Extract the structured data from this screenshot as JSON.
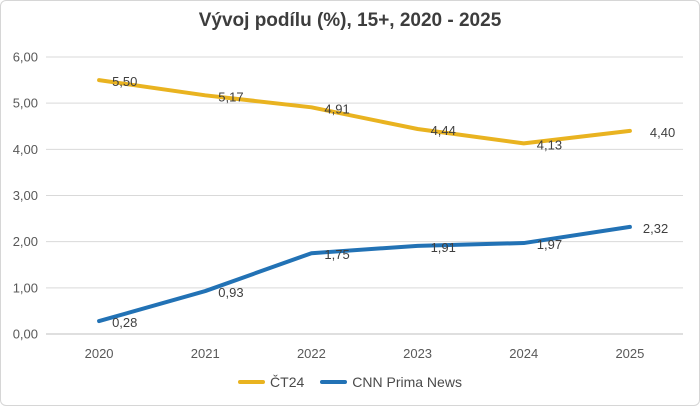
{
  "chart_data": {
    "type": "line",
    "title": "Vývoj podílu (%), 15+, 2020 - 2025",
    "xlabel": "",
    "ylabel": "",
    "categories": [
      "2020",
      "2021",
      "2022",
      "2023",
      "2024",
      "2025"
    ],
    "series": [
      {
        "name": "ČT24",
        "color": "#e9b320",
        "values": [
          5.5,
          5.17,
          4.91,
          4.44,
          4.13,
          4.4
        ],
        "labels": [
          "5,50",
          "5,17",
          "4,91",
          "4,44",
          "4,13",
          "4,40"
        ]
      },
      {
        "name": "CNN Prima News",
        "color": "#2272b5",
        "values": [
          0.28,
          0.93,
          1.75,
          1.91,
          1.97,
          2.32
        ],
        "labels": [
          "0,28",
          "0,93",
          "1,75",
          "1,91",
          "1,97",
          "2,32"
        ]
      }
    ],
    "ylim": [
      0,
      6
    ],
    "ytick_step": 1,
    "ytick_labels": [
      "0,00",
      "1,00",
      "2,00",
      "3,00",
      "4,00",
      "5,00",
      "6,00"
    ],
    "grid": true,
    "legend_position": "bottom"
  },
  "colors": {
    "gridline": "#d9d9d9",
    "axis_line": "#bfbfbf",
    "title_text": "#3d3d3d",
    "tick_text": "#595959",
    "data_label_text": "#3f3f3f",
    "legend_text": "#4a4a4a"
  }
}
